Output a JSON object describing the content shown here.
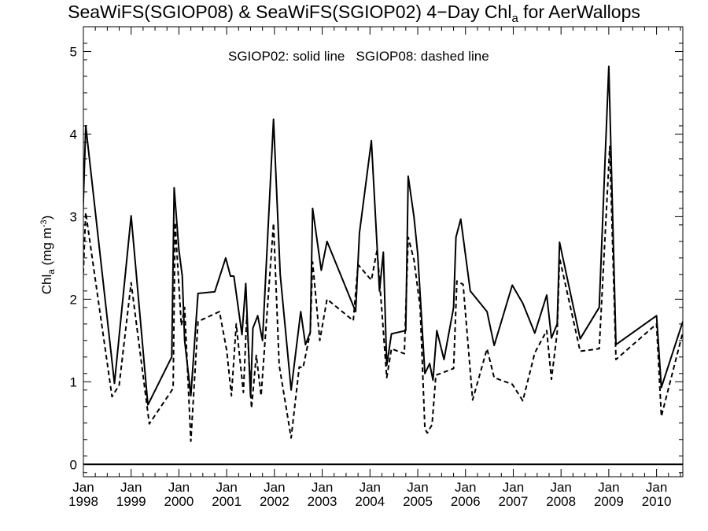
{
  "chart_data": {
    "type": "line",
    "title": {
      "prefix": "SeaWiFS(SGIOP08) & SeaWiFS(SGIOP02) 4−Day Chl",
      "subscript": "a",
      "suffix": " for AerWallops"
    },
    "annotation": {
      "solid": "SGIOP02: solid line",
      "dashed": "SGIOP08: dashed line"
    },
    "ylabel": {
      "main": "Chl",
      "subscript": "a",
      "unit": " (mg m",
      "exponent": "-3",
      "close": ")"
    },
    "xlim": [
      1998.0,
      2010.55
    ],
    "ylim": [
      -0.15,
      5.3
    ],
    "yticks": [
      "0",
      "1",
      "2",
      "3",
      "4",
      "5"
    ],
    "xticks": [
      {
        "month": "Jan",
        "year": "1998"
      },
      {
        "month": "Jan",
        "year": "1999"
      },
      {
        "month": "Jan",
        "year": "2000"
      },
      {
        "month": "Jan",
        "year": "2001"
      },
      {
        "month": "Jan",
        "year": "2002"
      },
      {
        "month": "Jan",
        "year": "2003"
      },
      {
        "month": "Jan",
        "year": "2004"
      },
      {
        "month": "Jan",
        "year": "2005"
      },
      {
        "month": "Jan",
        "year": "2006"
      },
      {
        "month": "Jan",
        "year": "2007"
      },
      {
        "month": "Jan",
        "year": "2008"
      },
      {
        "month": "Jan",
        "year": "2009"
      },
      {
        "month": "Jan",
        "year": "2010"
      }
    ],
    "reference_line_y": 0,
    "series": [
      {
        "style": "solid",
        "points": [
          [
            1997.95,
            2.3
          ],
          [
            1998.05,
            4.1
          ],
          [
            1998.65,
            0.98
          ],
          [
            1999.0,
            3.01
          ],
          [
            1999.35,
            0.72
          ],
          [
            1999.85,
            1.3
          ],
          [
            1999.9,
            3.35
          ],
          [
            2000.0,
            2.6
          ],
          [
            2000.07,
            2.28
          ],
          [
            2000.12,
            1.5
          ],
          [
            2000.25,
            0.83
          ],
          [
            2000.4,
            2.07
          ],
          [
            2000.75,
            2.09
          ],
          [
            2000.98,
            2.5
          ],
          [
            2001.08,
            2.28
          ],
          [
            2001.15,
            2.28
          ],
          [
            2001.32,
            1.57
          ],
          [
            2001.4,
            2.19
          ],
          [
            2001.5,
            0.82
          ],
          [
            2001.55,
            1.65
          ],
          [
            2001.65,
            1.8
          ],
          [
            2001.75,
            1.5
          ],
          [
            2001.98,
            4.18
          ],
          [
            2002.12,
            2.3
          ],
          [
            2002.35,
            0.9
          ],
          [
            2002.55,
            1.85
          ],
          [
            2002.65,
            1.45
          ],
          [
            2002.75,
            1.6
          ],
          [
            2002.8,
            3.1
          ],
          [
            2002.98,
            2.35
          ],
          [
            2003.1,
            2.7
          ],
          [
            2003.7,
            1.85
          ],
          [
            2003.78,
            2.8
          ],
          [
            2004.03,
            3.92
          ],
          [
            2004.2,
            2.1
          ],
          [
            2004.28,
            2.57
          ],
          [
            2004.35,
            1.2
          ],
          [
            2004.45,
            1.58
          ],
          [
            2004.75,
            1.62
          ],
          [
            2004.8,
            3.49
          ],
          [
            2004.92,
            3.0
          ],
          [
            2005.0,
            2.55
          ],
          [
            2005.15,
            1.1
          ],
          [
            2005.25,
            1.22
          ],
          [
            2005.32,
            1.02
          ],
          [
            2005.4,
            1.62
          ],
          [
            2005.55,
            1.27
          ],
          [
            2005.75,
            1.9
          ],
          [
            2005.8,
            2.75
          ],
          [
            2005.9,
            2.97
          ],
          [
            2006.1,
            2.1
          ],
          [
            2006.45,
            1.85
          ],
          [
            2006.6,
            1.44
          ],
          [
            2006.98,
            2.17
          ],
          [
            2007.2,
            1.95
          ],
          [
            2007.45,
            1.59
          ],
          [
            2007.7,
            2.05
          ],
          [
            2007.8,
            1.53
          ],
          [
            2007.92,
            1.7
          ],
          [
            2007.97,
            2.69
          ],
          [
            2008.4,
            1.52
          ],
          [
            2008.8,
            1.9
          ],
          [
            2009.0,
            4.82
          ],
          [
            2009.15,
            1.45
          ],
          [
            2010.0,
            1.8
          ],
          [
            2010.1,
            0.93
          ],
          [
            2010.55,
            1.73
          ]
        ]
      },
      {
        "style": "dashed",
        "points": [
          [
            1997.95,
            1.65
          ],
          [
            1998.05,
            3.05
          ],
          [
            1998.6,
            0.82
          ],
          [
            1998.75,
            0.96
          ],
          [
            1999.0,
            2.2
          ],
          [
            1999.38,
            0.49
          ],
          [
            1999.88,
            0.92
          ],
          [
            1999.92,
            2.93
          ],
          [
            2000.05,
            1.68
          ],
          [
            2000.12,
            1.9
          ],
          [
            2000.25,
            0.28
          ],
          [
            2000.4,
            1.73
          ],
          [
            2000.85,
            1.85
          ],
          [
            2001.0,
            1.38
          ],
          [
            2001.1,
            0.83
          ],
          [
            2001.2,
            1.7
          ],
          [
            2001.35,
            0.87
          ],
          [
            2001.42,
            1.8
          ],
          [
            2001.52,
            0.68
          ],
          [
            2001.62,
            1.32
          ],
          [
            2001.72,
            0.83
          ],
          [
            2001.98,
            2.92
          ],
          [
            2002.1,
            1.2
          ],
          [
            2002.35,
            0.32
          ],
          [
            2002.52,
            1.18
          ],
          [
            2002.6,
            1.17
          ],
          [
            2002.75,
            1.6
          ],
          [
            2002.8,
            2.45
          ],
          [
            2002.95,
            1.5
          ],
          [
            2003.1,
            2.0
          ],
          [
            2003.65,
            1.74
          ],
          [
            2003.75,
            2.42
          ],
          [
            2004.03,
            2.23
          ],
          [
            2004.15,
            2.6
          ],
          [
            2004.25,
            1.85
          ],
          [
            2004.35,
            1.05
          ],
          [
            2004.45,
            1.4
          ],
          [
            2004.72,
            1.34
          ],
          [
            2004.8,
            2.75
          ],
          [
            2004.92,
            2.48
          ],
          [
            2005.05,
            1.9
          ],
          [
            2005.15,
            0.43
          ],
          [
            2005.2,
            0.38
          ],
          [
            2005.3,
            0.48
          ],
          [
            2005.38,
            1.08
          ],
          [
            2005.75,
            1.16
          ],
          [
            2005.82,
            2.22
          ],
          [
            2005.95,
            2.18
          ],
          [
            2006.15,
            0.78
          ],
          [
            2006.45,
            1.4
          ],
          [
            2006.6,
            1.05
          ],
          [
            2006.98,
            0.97
          ],
          [
            2007.2,
            0.77
          ],
          [
            2007.45,
            1.35
          ],
          [
            2007.7,
            1.62
          ],
          [
            2007.8,
            1.03
          ],
          [
            2007.92,
            1.6
          ],
          [
            2007.97,
            2.5
          ],
          [
            2008.4,
            1.37
          ],
          [
            2008.8,
            1.4
          ],
          [
            2009.02,
            3.85
          ],
          [
            2009.15,
            1.27
          ],
          [
            2010.0,
            1.7
          ],
          [
            2010.1,
            0.58
          ],
          [
            2010.55,
            1.6
          ]
        ]
      }
    ]
  }
}
